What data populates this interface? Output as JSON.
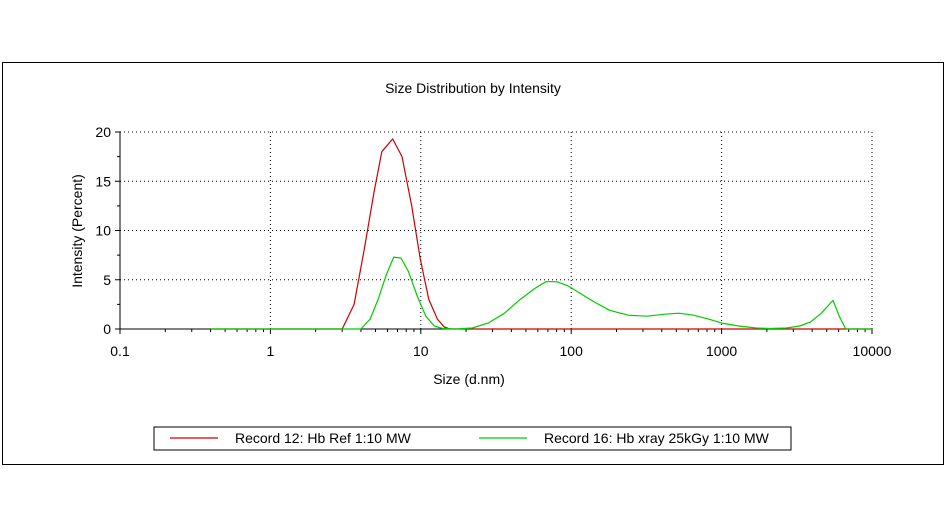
{
  "chart_data": {
    "type": "line",
    "title": "Size Distribution by Intensity",
    "xlabel": "Size (d.nm)",
    "ylabel": "Intensity (Percent)",
    "x_scale": "log",
    "xlim": [
      0.1,
      10000
    ],
    "ylim": [
      0,
      20
    ],
    "x_ticks": [
      0.1,
      1,
      10,
      100,
      1000,
      10000
    ],
    "x_tick_labels": [
      "0.1",
      "1",
      "10",
      "100",
      "1000",
      "10000"
    ],
    "y_ticks": [
      0,
      5,
      10,
      15,
      20
    ],
    "y_tick_labels": [
      "0",
      "5",
      "10",
      "15",
      "20"
    ],
    "grid": true,
    "legend_position": "bottom",
    "series": [
      {
        "name": "Record 12: Hb Ref 1:10 MW",
        "color": "#cc0000",
        "points": [
          [
            0.4,
            0
          ],
          [
            3.0,
            0
          ],
          [
            3.6,
            2.5
          ],
          [
            4.2,
            8
          ],
          [
            4.9,
            14
          ],
          [
            5.5,
            18
          ],
          [
            6.5,
            19.3
          ],
          [
            7.5,
            17.5
          ],
          [
            8.7,
            12.5
          ],
          [
            9.9,
            7.2
          ],
          [
            11.3,
            3.0
          ],
          [
            12.9,
            1.0
          ],
          [
            14.3,
            0.2
          ],
          [
            15.6,
            0
          ],
          [
            10000,
            0
          ]
        ]
      },
      {
        "name": "Record 16: Hb xray 25kGy 1:10 MW",
        "color": "#00cc00",
        "points": [
          [
            0.4,
            0
          ],
          [
            4.0,
            0
          ],
          [
            4.6,
            1.0
          ],
          [
            5.2,
            3.0
          ],
          [
            5.9,
            5.5
          ],
          [
            6.6,
            7.3
          ],
          [
            7.4,
            7.2
          ],
          [
            8.3,
            5.8
          ],
          [
            9.5,
            3.3
          ],
          [
            10.8,
            1.3
          ],
          [
            12.3,
            0.3
          ],
          [
            14,
            0.05
          ],
          [
            17,
            0
          ],
          [
            22,
            0.1
          ],
          [
            28,
            0.6
          ],
          [
            36,
            1.6
          ],
          [
            45,
            2.9
          ],
          [
            57,
            4.1
          ],
          [
            68,
            4.8
          ],
          [
            80,
            4.8
          ],
          [
            95,
            4.4
          ],
          [
            110,
            3.8
          ],
          [
            140,
            2.8
          ],
          [
            180,
            1.9
          ],
          [
            240,
            1.4
          ],
          [
            320,
            1.3
          ],
          [
            420,
            1.5
          ],
          [
            520,
            1.6
          ],
          [
            650,
            1.4
          ],
          [
            820,
            1.0
          ],
          [
            1000,
            0.6
          ],
          [
            1300,
            0.3
          ],
          [
            1700,
            0.1
          ],
          [
            2100,
            0.05
          ],
          [
            2700,
            0.1
          ],
          [
            3300,
            0.3
          ],
          [
            3900,
            0.7
          ],
          [
            4600,
            1.6
          ],
          [
            5500,
            2.9
          ],
          [
            6100,
            1.2
          ],
          [
            6700,
            0
          ],
          [
            10000,
            0
          ]
        ]
      }
    ]
  }
}
